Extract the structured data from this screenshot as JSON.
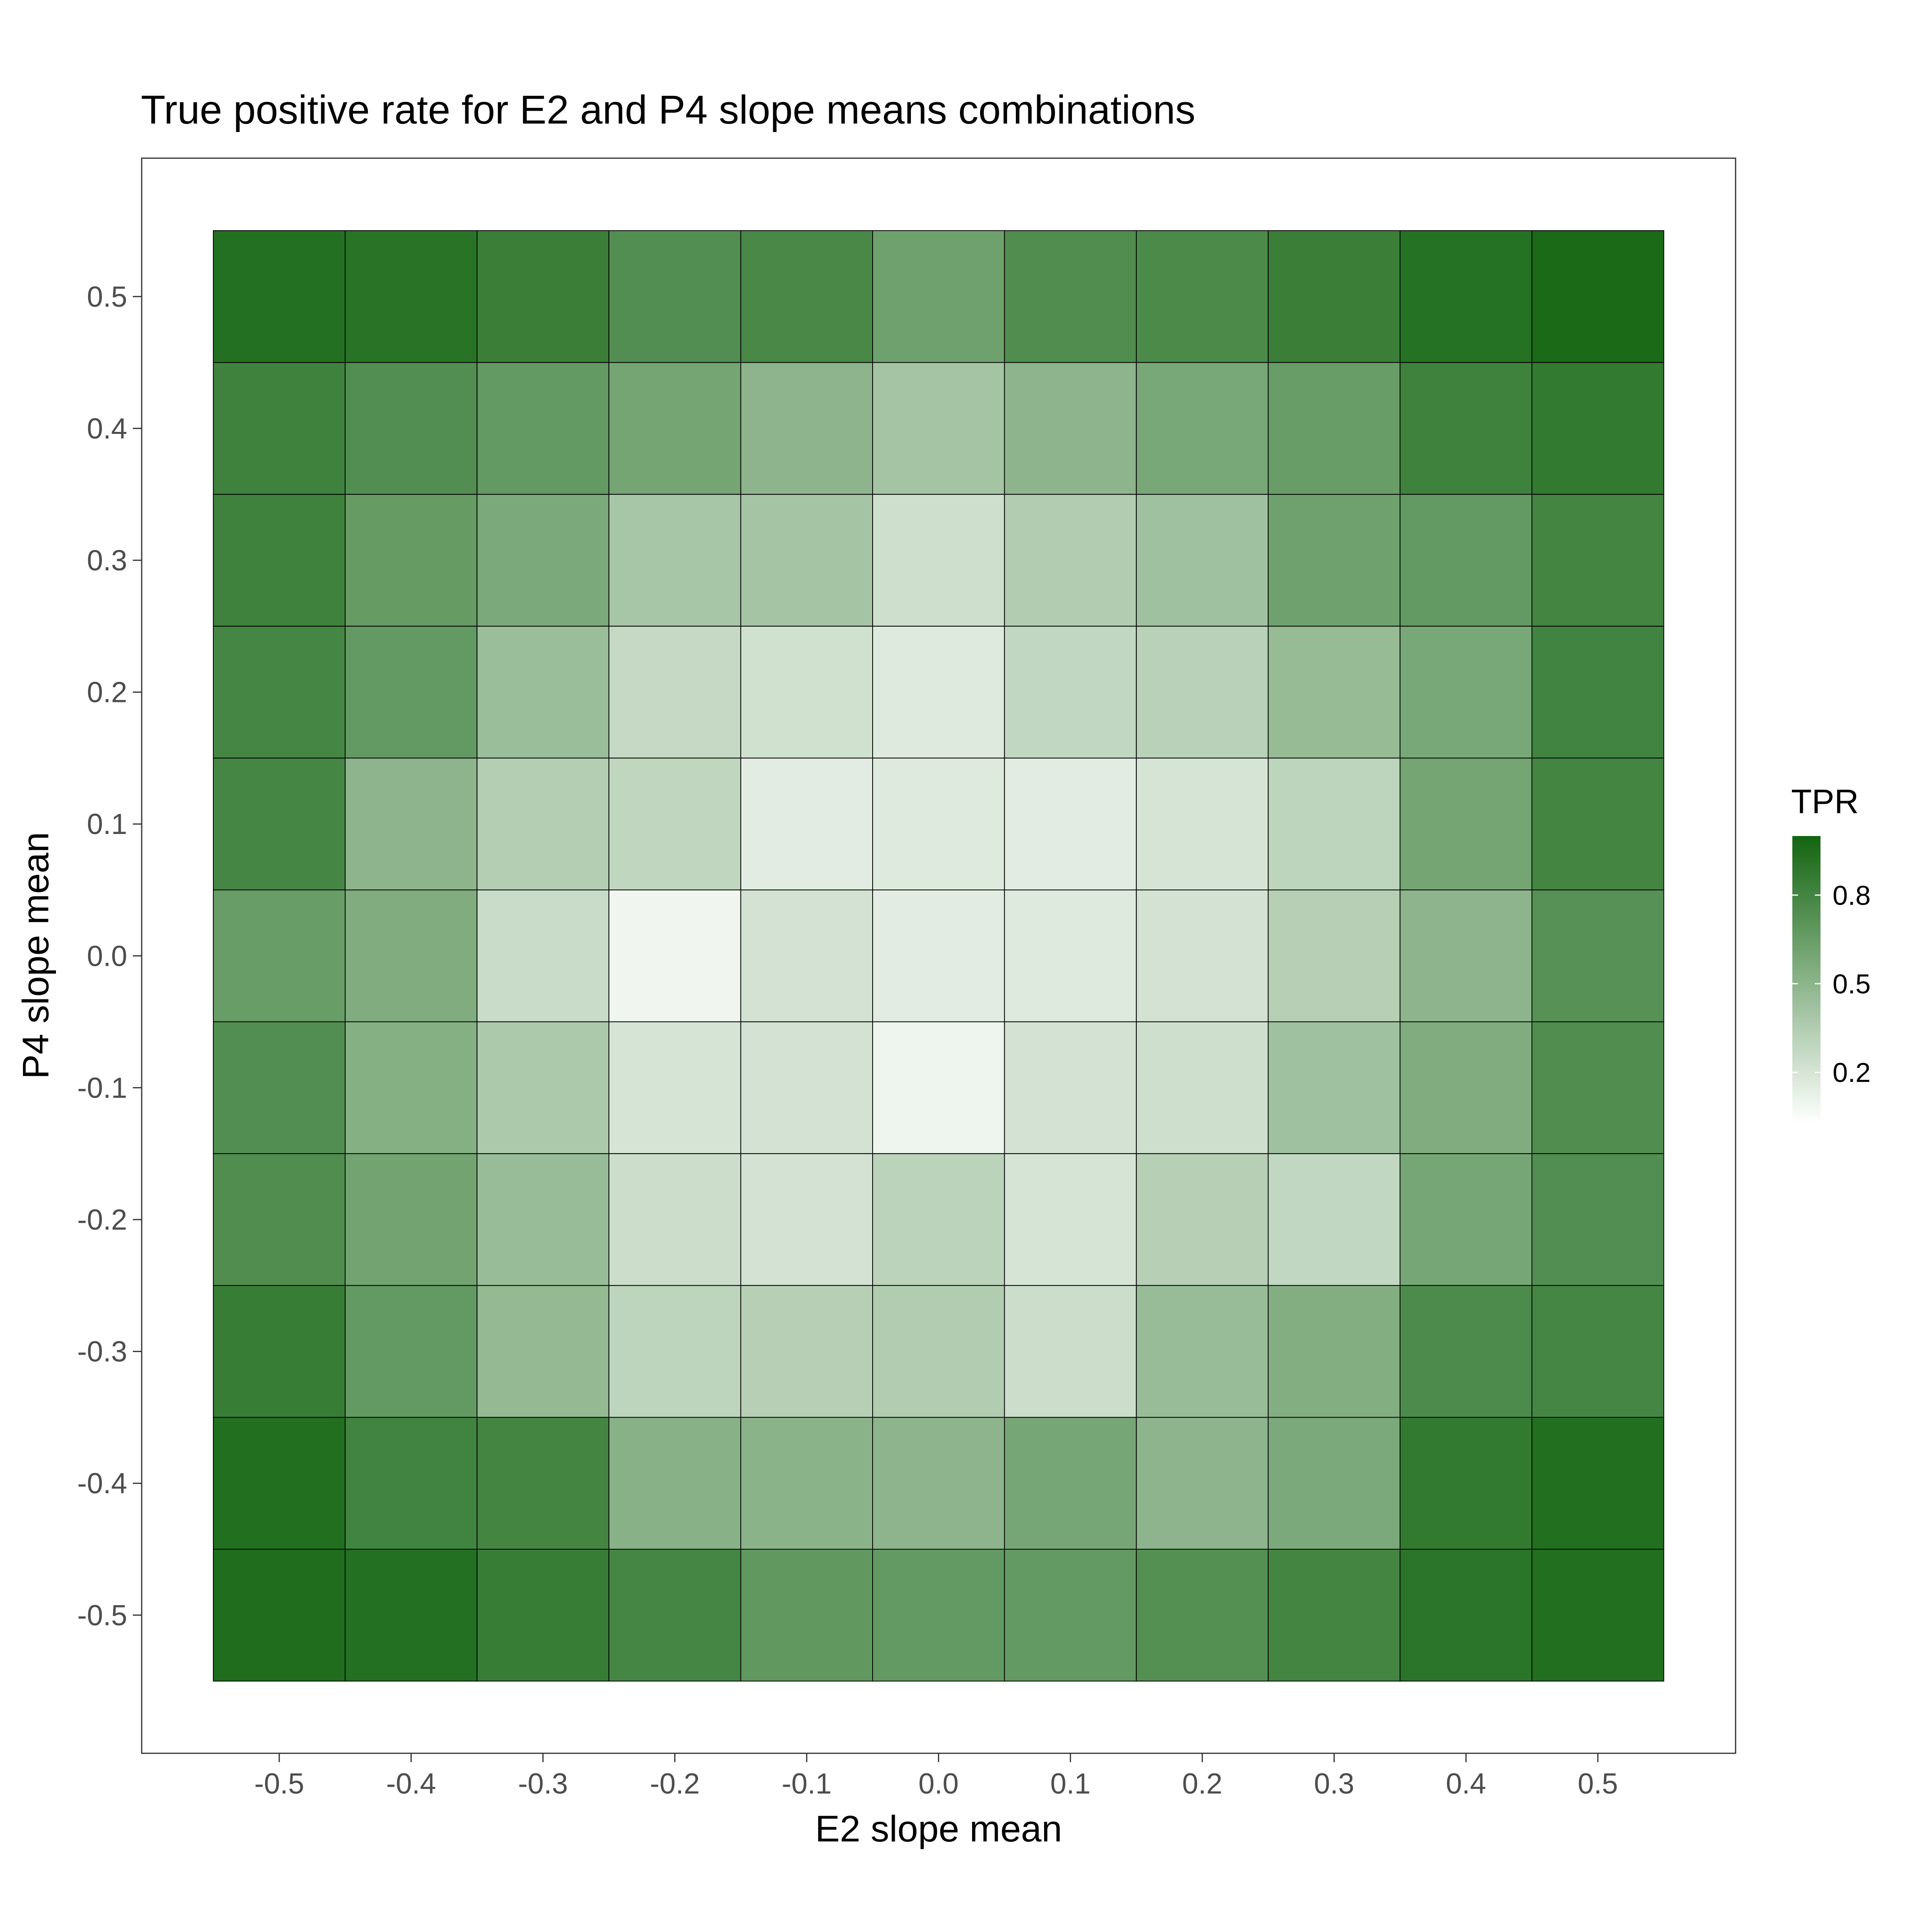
{
  "chart_data": {
    "type": "heatmap",
    "title": "True positive rate for E2 and P4 slope means combinations",
    "xlabel": "E2 slope mean",
    "ylabel": "P4 slope mean",
    "x": [
      -0.5,
      -0.4,
      -0.3,
      -0.2,
      -0.1,
      0.0,
      0.1,
      0.2,
      0.3,
      0.4,
      0.5
    ],
    "y": [
      0.5,
      0.4,
      0.3,
      0.2,
      0.1,
      0.0,
      -0.1,
      -0.2,
      -0.3,
      -0.4,
      -0.5
    ],
    "x_tick_labels": [
      "-0.5",
      "-0.4",
      "-0.3",
      "-0.2",
      "-0.1",
      "0.0",
      "0.1",
      "0.2",
      "0.3",
      "0.4",
      "0.5"
    ],
    "y_tick_labels": [
      "0.5",
      "0.4",
      "0.3",
      "0.2",
      "0.1",
      "0.0",
      "-0.1",
      "-0.2",
      "-0.3",
      "-0.4",
      "-0.5"
    ],
    "values": [
      [
        0.93,
        0.91,
        0.84,
        0.74,
        0.78,
        0.62,
        0.75,
        0.77,
        0.84,
        0.92,
        0.97
      ],
      [
        0.82,
        0.74,
        0.67,
        0.6,
        0.5,
        0.4,
        0.5,
        0.58,
        0.65,
        0.82,
        0.87
      ],
      [
        0.82,
        0.66,
        0.57,
        0.39,
        0.4,
        0.23,
        0.35,
        0.42,
        0.62,
        0.67,
        0.8
      ],
      [
        0.79,
        0.67,
        0.44,
        0.27,
        0.22,
        0.16,
        0.28,
        0.32,
        0.46,
        0.58,
        0.81
      ],
      [
        0.79,
        0.5,
        0.34,
        0.29,
        0.15,
        0.16,
        0.15,
        0.2,
        0.3,
        0.6,
        0.8
      ],
      [
        0.65,
        0.55,
        0.25,
        0.09,
        0.21,
        0.15,
        0.16,
        0.21,
        0.33,
        0.5,
        0.72
      ],
      [
        0.74,
        0.53,
        0.37,
        0.2,
        0.21,
        0.1,
        0.21,
        0.23,
        0.42,
        0.55,
        0.75
      ],
      [
        0.75,
        0.61,
        0.45,
        0.24,
        0.21,
        0.31,
        0.2,
        0.33,
        0.28,
        0.59,
        0.74
      ],
      [
        0.85,
        0.67,
        0.47,
        0.3,
        0.33,
        0.35,
        0.24,
        0.45,
        0.54,
        0.76,
        0.79
      ],
      [
        0.94,
        0.81,
        0.8,
        0.52,
        0.51,
        0.5,
        0.59,
        0.5,
        0.57,
        0.87,
        0.94
      ],
      [
        0.95,
        0.93,
        0.85,
        0.79,
        0.68,
        0.67,
        0.67,
        0.73,
        0.8,
        0.9,
        0.94
      ]
    ],
    "zlim": [
      0.03,
      1.0
    ],
    "grid": false,
    "legend": {
      "title": "TPR",
      "ticks": [
        0.2,
        0.5,
        0.8
      ],
      "tick_labels": [
        "0.2",
        "0.5",
        "0.8"
      ],
      "placement": "right"
    },
    "colors": {
      "low": "#ffffff",
      "high": "#136511",
      "cell_border": "#000000"
    }
  }
}
